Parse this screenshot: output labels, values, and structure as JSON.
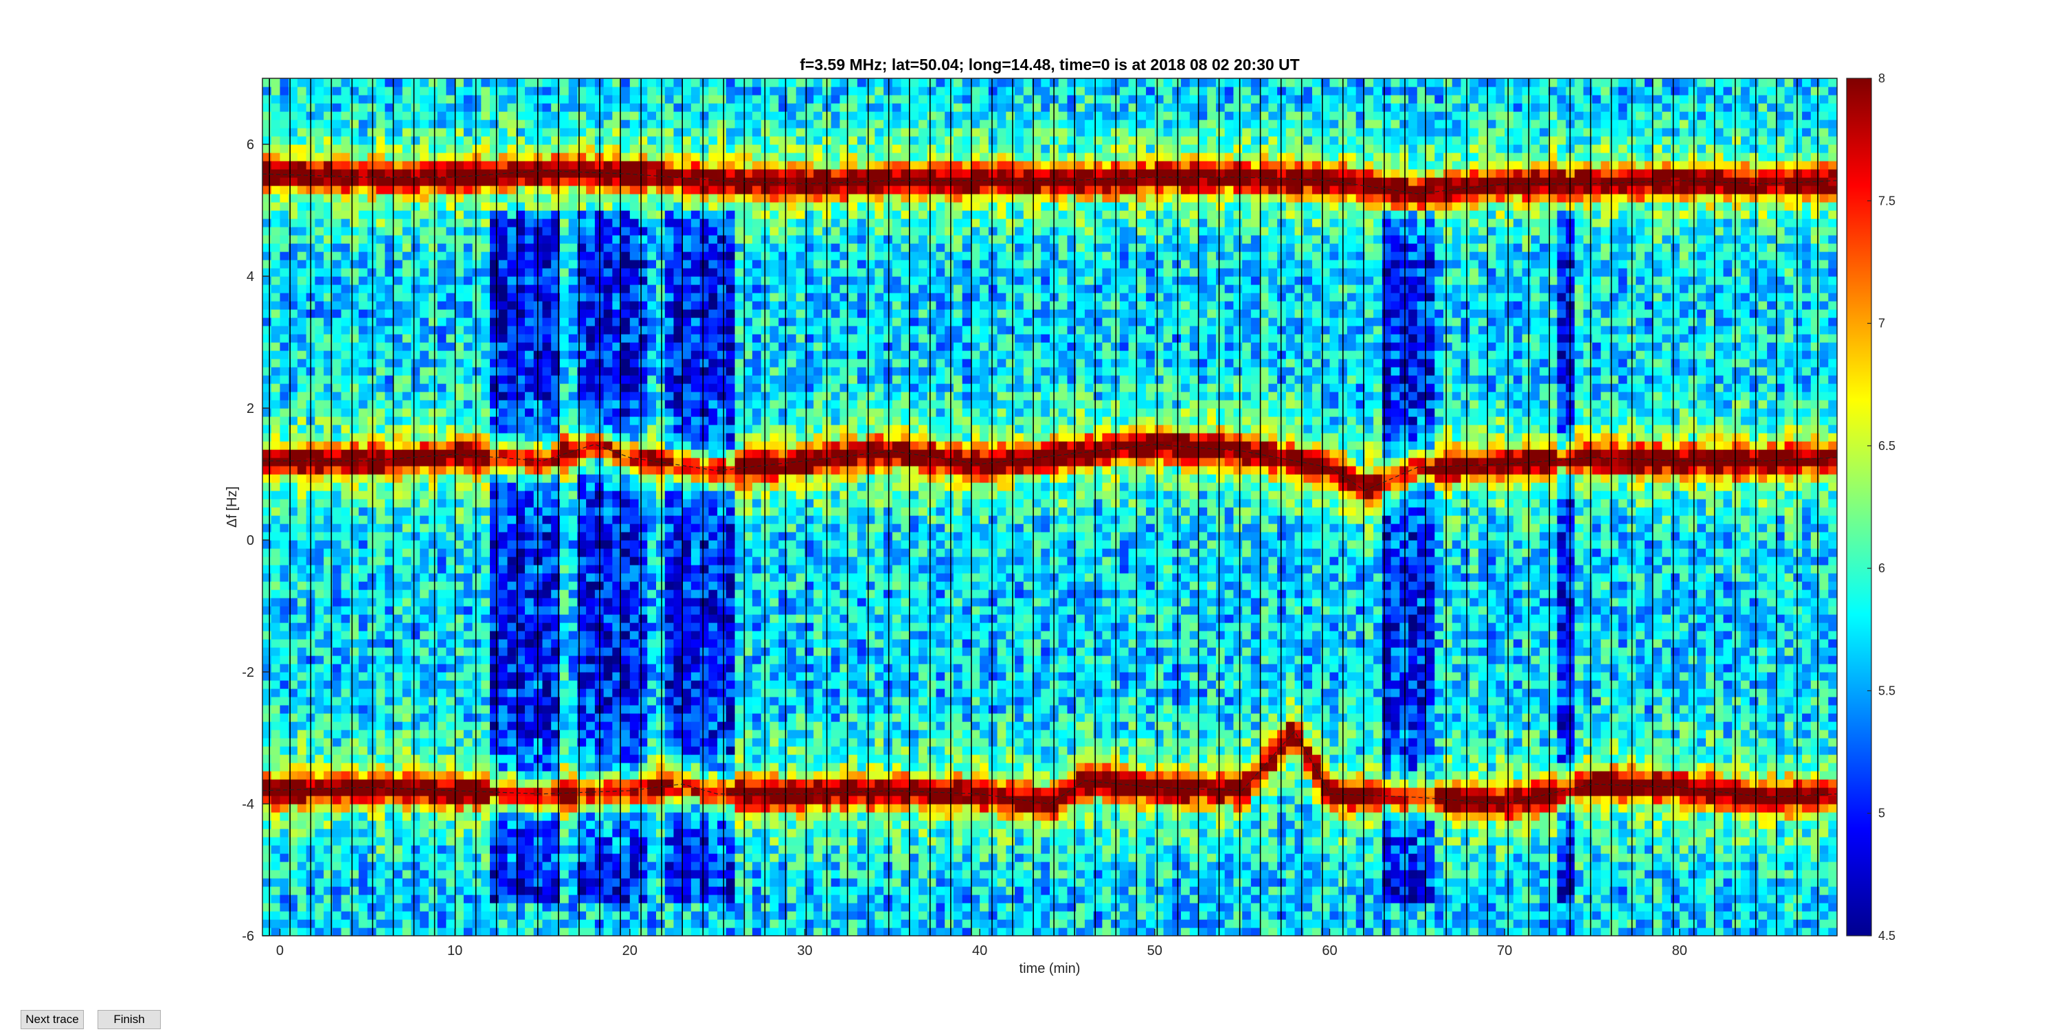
{
  "buttons": {
    "next_trace": "Next trace",
    "finish": "Finish"
  },
  "chart_data": {
    "type": "heatmap",
    "title": "f=3.59 MHz;  lat=50.04; long=14.48, time=0 is at 2018 08 02 20:30 UT",
    "xlabel": "time (min)",
    "ylabel": "Δf [Hz]",
    "xlim": [
      -1,
      89
    ],
    "ylim": [
      -6,
      7
    ],
    "xticks": [
      0,
      10,
      20,
      30,
      40,
      50,
      60,
      70,
      80
    ],
    "yticks": [
      -6,
      -4,
      -2,
      0,
      2,
      4,
      6
    ],
    "colormap": "jet",
    "clim": [
      4.5,
      8
    ],
    "colorbar_ticks": [
      4.5,
      5,
      5.5,
      6,
      6.5,
      7,
      7.5,
      8
    ],
    "trace_lines": [
      {
        "name": "upper",
        "f_hz": 5.55,
        "points": [
          [
            -1,
            5.55
          ],
          [
            5,
            5.5
          ],
          [
            10,
            5.5
          ],
          [
            15,
            5.6
          ],
          [
            20,
            5.55
          ],
          [
            25,
            5.45
          ],
          [
            30,
            5.4
          ],
          [
            35,
            5.45
          ],
          [
            40,
            5.45
          ],
          [
            45,
            5.45
          ],
          [
            50,
            5.5
          ],
          [
            55,
            5.5
          ],
          [
            60,
            5.45
          ],
          [
            65,
            5.25
          ],
          [
            70,
            5.4
          ],
          [
            75,
            5.4
          ],
          [
            80,
            5.45
          ],
          [
            85,
            5.4
          ],
          [
            89,
            5.45
          ]
        ]
      },
      {
        "name": "middle",
        "f_hz": 1.2,
        "points": [
          [
            -1,
            1.2
          ],
          [
            5,
            1.2
          ],
          [
            10,
            1.3
          ],
          [
            15,
            1.2
          ],
          [
            18,
            1.45
          ],
          [
            20,
            1.25
          ],
          [
            25,
            1.05
          ],
          [
            30,
            1.2
          ],
          [
            35,
            1.35
          ],
          [
            40,
            1.15
          ],
          [
            45,
            1.3
          ],
          [
            50,
            1.45
          ],
          [
            55,
            1.35
          ],
          [
            60,
            1.1
          ],
          [
            62,
            0.75
          ],
          [
            65,
            1.1
          ],
          [
            70,
            1.15
          ],
          [
            75,
            1.25
          ],
          [
            80,
            1.2
          ],
          [
            85,
            1.2
          ],
          [
            89,
            1.25
          ]
        ]
      },
      {
        "name": "lower",
        "f_hz": -3.8,
        "points": [
          [
            -1,
            -3.8
          ],
          [
            5,
            -3.75
          ],
          [
            10,
            -3.8
          ],
          [
            15,
            -3.85
          ],
          [
            20,
            -3.8
          ],
          [
            23,
            -3.7
          ],
          [
            25,
            -3.85
          ],
          [
            30,
            -3.85
          ],
          [
            35,
            -3.8
          ],
          [
            40,
            -3.85
          ],
          [
            44,
            -4.0
          ],
          [
            46,
            -3.65
          ],
          [
            50,
            -3.75
          ],
          [
            55,
            -3.8
          ],
          [
            58,
            -2.9
          ],
          [
            60,
            -3.85
          ],
          [
            65,
            -3.9
          ],
          [
            70,
            -4.0
          ],
          [
            75,
            -3.7
          ],
          [
            80,
            -3.75
          ],
          [
            85,
            -3.9
          ],
          [
            89,
            -3.85
          ]
        ]
      }
    ],
    "dark_columns_min": [
      [
        12,
        16
      ],
      [
        17,
        21
      ],
      [
        22,
        26
      ],
      [
        63,
        66
      ],
      [
        73,
        74
      ]
    ]
  }
}
